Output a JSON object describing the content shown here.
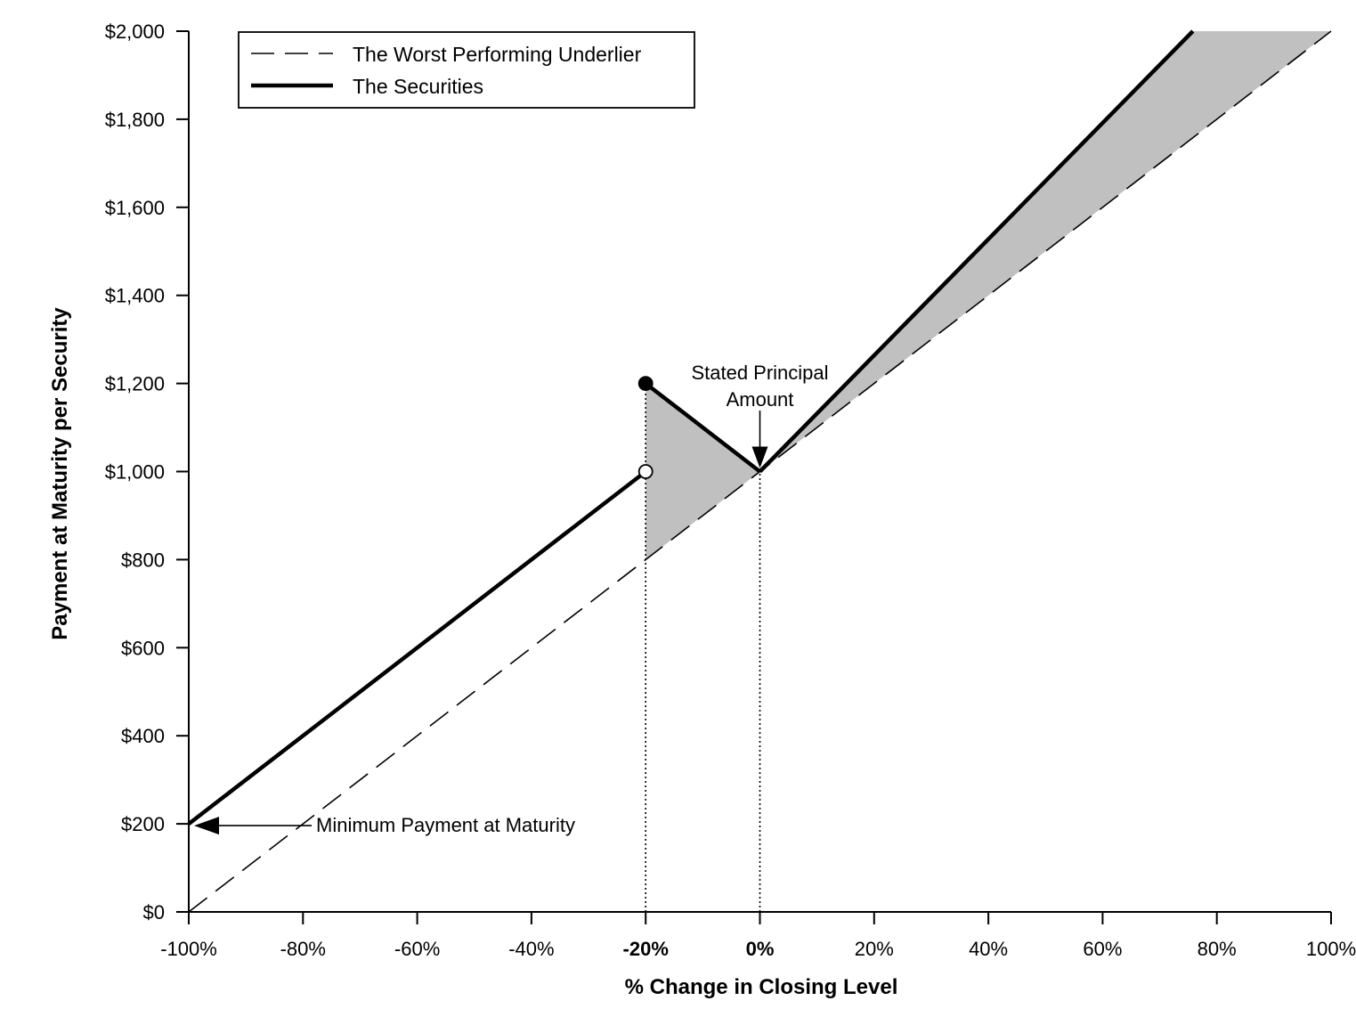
{
  "chart_data": {
    "type": "line",
    "xlabel": "% Change in Closing Level",
    "ylabel": "Payment at Maturity per Security",
    "xlim": [
      -100,
      100
    ],
    "ylim": [
      0,
      2000
    ],
    "x_ticks": [
      -100,
      -80,
      -60,
      -40,
      -20,
      0,
      20,
      40,
      60,
      80,
      100
    ],
    "x_tick_labels": [
      "-100%",
      "-80%",
      "-60%",
      "-40%",
      "-20%",
      "0%",
      "20%",
      "40%",
      "60%",
      "80%",
      "100%"
    ],
    "x_bold_ticks": [
      "-20%",
      "0%"
    ],
    "y_ticks": [
      0,
      200,
      400,
      600,
      800,
      1000,
      1200,
      1400,
      1600,
      1800,
      2000
    ],
    "y_tick_labels": [
      "$0",
      "$200",
      "$400",
      "$600",
      "$800",
      "$1,000",
      "$1,200",
      "$1,400",
      "$1,600",
      "$1,800",
      "$2,000"
    ],
    "grid": false,
    "legend": {
      "placement": "top-left",
      "entries": [
        {
          "label": "The Worst Performing Underlier",
          "style": "dashed"
        },
        {
          "label": "The Securities",
          "style": "solid-thick"
        }
      ]
    },
    "series": [
      {
        "name": "The Worst Performing Underlier",
        "style": "dashed",
        "x": [
          -100,
          100
        ],
        "y": [
          0,
          2000
        ]
      },
      {
        "name": "The Securities",
        "style": "solid-thick",
        "segments": [
          {
            "x": [
              -100,
              -20
            ],
            "y": [
              200,
              1000
            ]
          },
          {
            "x": [
              -20,
              0
            ],
            "y": [
              1200,
              1000
            ]
          },
          {
            "x": [
              0,
              75.8
            ],
            "y": [
              1000,
              2000
            ]
          }
        ]
      }
    ],
    "markers": [
      {
        "x": -20,
        "y": 1200,
        "fill": "filled"
      },
      {
        "x": -20,
        "y": 1000,
        "fill": "open"
      }
    ],
    "shaded_regions": [
      {
        "x": [
          -20,
          -20,
          0
        ],
        "y": [
          800,
          1200,
          1000
        ]
      },
      {
        "x": [
          0,
          75.8,
          100
        ],
        "y": [
          1000,
          2000,
          2000
        ]
      }
    ],
    "reference_lines": [
      {
        "x": -20,
        "from_y": 0,
        "to_y": 1200,
        "style": "dotted"
      },
      {
        "x": 0,
        "from_y": 0,
        "to_y": 1000,
        "style": "dotted"
      }
    ],
    "annotations": [
      {
        "text_lines": [
          "Stated Principal",
          "Amount"
        ],
        "arrow_to": {
          "x": 0,
          "y": 1000
        }
      },
      {
        "text_lines": [
          "Minimum Payment at Maturity"
        ],
        "arrow_to": {
          "x": -100,
          "y": 200
        }
      }
    ],
    "colors": {
      "line": "#000000",
      "shade": "#c0c0c0",
      "background": "#ffffff"
    }
  }
}
